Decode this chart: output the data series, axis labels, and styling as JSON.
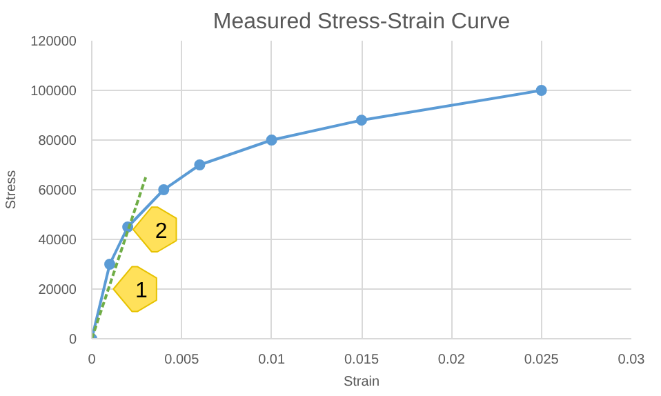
{
  "chart_data": {
    "type": "line",
    "title": "Measured Stress-Strain Curve",
    "xlabel": "Strain",
    "ylabel": "Stress",
    "series": [
      {
        "color": "#5b9bd5",
        "marker": "circle",
        "line_style": "solid",
        "x": [
          0,
          0.001,
          0.002,
          0.004,
          0.006,
          0.01,
          0.015,
          0.025
        ],
        "values": [
          0,
          30000,
          45000,
          60000,
          70000,
          80000,
          88000,
          100000
        ]
      },
      {
        "color": "#70ad47",
        "marker": "none",
        "line_style": "dashed",
        "x": [
          0,
          0.003
        ],
        "values": [
          0,
          65000
        ]
      }
    ],
    "annotations": [
      {
        "text": "1",
        "x": 0.0012,
        "y": 20000
      },
      {
        "text": "2",
        "x": 0.0023,
        "y": 44000
      }
    ],
    "xlim": [
      0,
      0.03
    ],
    "xticks": [
      0,
      0.005,
      0.01,
      0.015,
      0.02,
      0.025,
      0.03
    ],
    "ylim": [
      0,
      120000
    ],
    "yticks": [
      0,
      20000,
      40000,
      60000,
      80000,
      100000,
      120000
    ],
    "grid": true
  }
}
